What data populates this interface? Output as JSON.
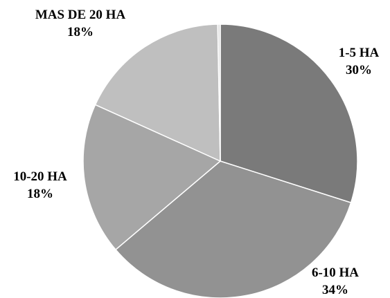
{
  "chart_data": {
    "type": "pie",
    "title": "",
    "slices": [
      {
        "label": "1-5 HA",
        "percent_label": "30%",
        "value": 30,
        "color": "#7a7a7a"
      },
      {
        "label": "6-10 HA",
        "percent_label": "34%",
        "value": 34,
        "color": "#929292"
      },
      {
        "label": "10-20 HA",
        "percent_label": "18%",
        "value": 18,
        "color": "#a6a6a6"
      },
      {
        "label": "MAS DE 20 HA",
        "percent_label": "18%",
        "value": 18,
        "color": "#bfbfbf"
      },
      {
        "label": "",
        "percent_label": "",
        "value": 0.3,
        "color": "#e0e0e0"
      }
    ],
    "start": "12 o'clock",
    "direction": "clockwise",
    "legend": "none",
    "data_labels": "outside"
  }
}
